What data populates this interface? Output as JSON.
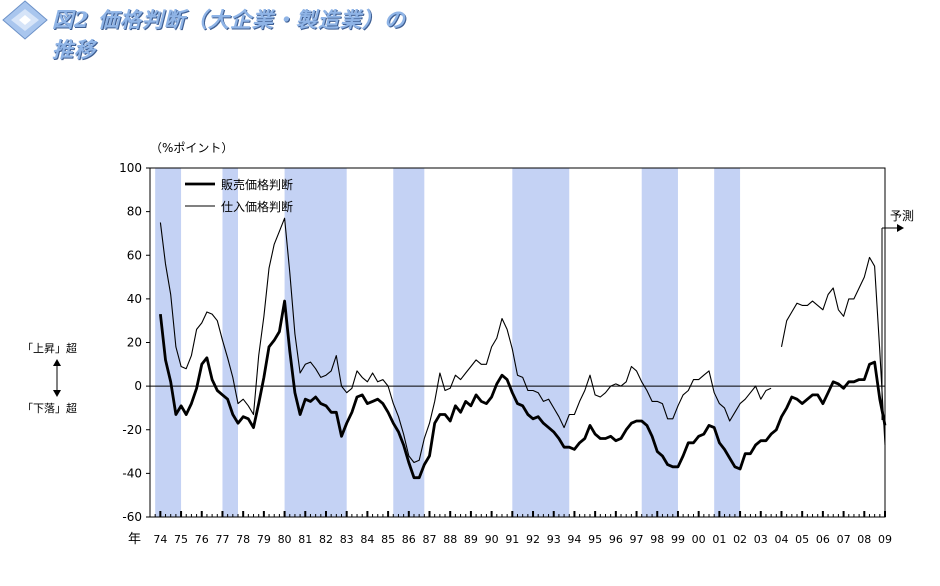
{
  "title": "図2 価格判断（大企業・製造業）の推移",
  "chart_data": {
    "type": "line",
    "unit_label": "（%ポイント）",
    "year_label": "年",
    "y_range": [
      -60,
      100
    ],
    "y_ticks": [
      "100",
      "80",
      "60",
      "40",
      "20",
      "0",
      "-20",
      "-40",
      "-60"
    ],
    "x_range": [
      1973.5,
      2009.0
    ],
    "x_ticks": [
      "74",
      "75",
      "76",
      "77",
      "78",
      "79",
      "80",
      "81",
      "82",
      "83",
      "84",
      "85",
      "86",
      "87",
      "88",
      "89",
      "90",
      "91",
      "92",
      "93",
      "94",
      "95",
      "96",
      "97",
      "98",
      "99",
      "00",
      "01",
      "02",
      "03",
      "04",
      "05",
      "06",
      "07",
      "08",
      "09"
    ],
    "recessions": [
      [
        1973.75,
        1975.0
      ],
      [
        1977.0,
        1977.75
      ],
      [
        1980.0,
        1983.0
      ],
      [
        1985.25,
        1986.75
      ],
      [
        1991.0,
        1993.75
      ],
      [
        1997.25,
        1999.0
      ],
      [
        2000.75,
        2002.0
      ]
    ],
    "series": [
      {
        "name": "販売価格判断",
        "values": [
          [
            1974.0,
            33
          ],
          [
            1974.25,
            12
          ],
          [
            1974.5,
            2
          ],
          [
            1974.75,
            -13
          ],
          [
            1975.0,
            -9
          ],
          [
            1975.25,
            -13
          ],
          [
            1975.5,
            -8
          ],
          [
            1975.75,
            -1
          ],
          [
            1976.0,
            10
          ],
          [
            1976.25,
            13
          ],
          [
            1976.5,
            3
          ],
          [
            1976.75,
            -2
          ],
          [
            1977.0,
            -4
          ],
          [
            1977.25,
            -6
          ],
          [
            1977.5,
            -13
          ],
          [
            1977.75,
            -17
          ],
          [
            1978.0,
            -14
          ],
          [
            1978.25,
            -15
          ],
          [
            1978.5,
            -19
          ],
          [
            1978.75,
            -8
          ],
          [
            1979.0,
            4
          ],
          [
            1979.25,
            18
          ],
          [
            1979.5,
            21
          ],
          [
            1979.75,
            25
          ],
          [
            1980.0,
            39
          ],
          [
            1980.25,
            16
          ],
          [
            1980.5,
            -3
          ],
          [
            1980.75,
            -13
          ],
          [
            1981.0,
            -6
          ],
          [
            1981.25,
            -7
          ],
          [
            1981.5,
            -5
          ],
          [
            1981.75,
            -8
          ],
          [
            1982.0,
            -9
          ],
          [
            1982.25,
            -12
          ],
          [
            1982.5,
            -12
          ],
          [
            1982.75,
            -23
          ],
          [
            1983.0,
            -17
          ],
          [
            1983.25,
            -12
          ],
          [
            1983.5,
            -5
          ],
          [
            1983.75,
            -4
          ],
          [
            1984.0,
            -8
          ],
          [
            1984.25,
            -7
          ],
          [
            1984.5,
            -6
          ],
          [
            1984.75,
            -8
          ],
          [
            1985.0,
            -12
          ],
          [
            1985.25,
            -17
          ],
          [
            1985.5,
            -21
          ],
          [
            1985.75,
            -27
          ],
          [
            1986.0,
            -35
          ],
          [
            1986.25,
            -42
          ],
          [
            1986.5,
            -42
          ],
          [
            1986.75,
            -36
          ],
          [
            1987.0,
            -32
          ],
          [
            1987.25,
            -17
          ],
          [
            1987.5,
            -13
          ],
          [
            1987.75,
            -13
          ],
          [
            1988.0,
            -16
          ],
          [
            1988.25,
            -9
          ],
          [
            1988.5,
            -12
          ],
          [
            1988.75,
            -7
          ],
          [
            1989.0,
            -9
          ],
          [
            1989.25,
            -4
          ],
          [
            1989.5,
            -7
          ],
          [
            1989.75,
            -8
          ],
          [
            1990.0,
            -5
          ],
          [
            1990.25,
            1
          ],
          [
            1990.5,
            5
          ],
          [
            1990.75,
            3
          ],
          [
            1991.0,
            -3
          ],
          [
            1991.25,
            -8
          ],
          [
            1991.5,
            -9
          ],
          [
            1991.75,
            -13
          ],
          [
            1992.0,
            -15
          ],
          [
            1992.25,
            -14
          ],
          [
            1992.5,
            -17
          ],
          [
            1992.75,
            -19
          ],
          [
            1993.0,
            -21
          ],
          [
            1993.25,
            -24
          ],
          [
            1993.5,
            -28
          ],
          [
            1993.75,
            -28
          ],
          [
            1994.0,
            -29
          ],
          [
            1994.25,
            -26
          ],
          [
            1994.5,
            -24
          ],
          [
            1994.75,
            -18
          ],
          [
            1995.0,
            -22
          ],
          [
            1995.25,
            -24
          ],
          [
            1995.5,
            -24
          ],
          [
            1995.75,
            -23
          ],
          [
            1996.0,
            -25
          ],
          [
            1996.25,
            -24
          ],
          [
            1996.5,
            -20
          ],
          [
            1996.75,
            -17
          ],
          [
            1997.0,
            -16
          ],
          [
            1997.25,
            -16
          ],
          [
            1997.5,
            -18
          ],
          [
            1997.75,
            -23
          ],
          [
            1998.0,
            -30
          ],
          [
            1998.25,
            -32
          ],
          [
            1998.5,
            -36
          ],
          [
            1998.75,
            -37
          ],
          [
            1999.0,
            -37
          ],
          [
            1999.25,
            -32
          ],
          [
            1999.5,
            -26
          ],
          [
            1999.75,
            -26
          ],
          [
            2000.0,
            -23
          ],
          [
            2000.25,
            -22
          ],
          [
            2000.5,
            -18
          ],
          [
            2000.75,
            -19
          ],
          [
            2001.0,
            -26
          ],
          [
            2001.25,
            -29
          ],
          [
            2001.5,
            -33
          ],
          [
            2001.75,
            -37
          ],
          [
            2002.0,
            -38
          ],
          [
            2002.25,
            -31
          ],
          [
            2002.5,
            -31
          ],
          [
            2002.75,
            -27
          ],
          [
            2003.0,
            -25
          ],
          [
            2003.25,
            -25
          ],
          [
            2003.5,
            -22
          ],
          [
            2003.75,
            -20
          ],
          [
            2004.0,
            -14
          ],
          [
            2004.25,
            -10
          ],
          [
            2004.5,
            -5
          ],
          [
            2004.75,
            -6
          ],
          [
            2005.0,
            -8
          ],
          [
            2005.25,
            -6
          ],
          [
            2005.5,
            -4
          ],
          [
            2005.75,
            -4
          ],
          [
            2006.0,
            -8
          ],
          [
            2006.25,
            -3
          ],
          [
            2006.5,
            2
          ],
          [
            2006.75,
            1
          ],
          [
            2007.0,
            -1
          ],
          [
            2007.25,
            2
          ],
          [
            2007.5,
            2
          ],
          [
            2007.75,
            3
          ],
          [
            2008.0,
            3
          ],
          [
            2008.25,
            10
          ],
          [
            2008.5,
            11
          ],
          [
            2008.75,
            -6
          ],
          [
            2009.0,
            -18
          ]
        ]
      },
      {
        "name": "仕入価格判断",
        "values": [
          [
            1974.0,
            75
          ],
          [
            1974.25,
            56
          ],
          [
            1974.5,
            42
          ],
          [
            1974.75,
            18
          ],
          [
            1975.0,
            9
          ],
          [
            1975.25,
            8
          ],
          [
            1975.5,
            14
          ],
          [
            1975.75,
            26
          ],
          [
            1976.0,
            29
          ],
          [
            1976.25,
            34
          ],
          [
            1976.5,
            33
          ],
          [
            1976.75,
            30
          ],
          [
            1977.0,
            21
          ],
          [
            1977.25,
            13
          ],
          [
            1977.5,
            4
          ],
          [
            1977.75,
            -8
          ],
          [
            1978.0,
            -6
          ],
          [
            1978.25,
            -9
          ],
          [
            1978.5,
            -13
          ],
          [
            1978.75,
            14
          ],
          [
            1979.0,
            32
          ],
          [
            1979.25,
            54
          ],
          [
            1979.5,
            65
          ],
          [
            1979.75,
            71
          ],
          [
            1980.0,
            77
          ],
          [
            1980.25,
            52
          ],
          [
            1980.5,
            24
          ],
          [
            1980.75,
            6
          ],
          [
            1981.0,
            10
          ],
          [
            1981.25,
            11
          ],
          [
            1981.5,
            8
          ],
          [
            1981.75,
            4
          ],
          [
            1982.0,
            5
          ],
          [
            1982.25,
            7
          ],
          [
            1982.5,
            14
          ],
          [
            1982.75,
            0
          ],
          [
            1983.0,
            -3
          ],
          [
            1983.25,
            -1
          ],
          [
            1983.5,
            7
          ],
          [
            1983.75,
            4
          ],
          [
            1984.0,
            2
          ],
          [
            1984.25,
            6
          ],
          [
            1984.5,
            2
          ],
          [
            1984.75,
            3
          ],
          [
            1985.0,
            0
          ],
          [
            1985.25,
            -8
          ],
          [
            1985.5,
            -14
          ],
          [
            1985.75,
            -22
          ],
          [
            1986.0,
            -32
          ],
          [
            1986.25,
            -35
          ],
          [
            1986.5,
            -34
          ],
          [
            1986.75,
            -24
          ],
          [
            1987.0,
            -17
          ],
          [
            1987.25,
            -7
          ],
          [
            1987.5,
            6
          ],
          [
            1987.75,
            -2
          ],
          [
            1988.0,
            -1
          ],
          [
            1988.25,
            5
          ],
          [
            1988.5,
            3
          ],
          [
            1988.75,
            6
          ],
          [
            1989.0,
            9
          ],
          [
            1989.25,
            12
          ],
          [
            1989.5,
            10
          ],
          [
            1989.75,
            10
          ],
          [
            1990.0,
            18
          ],
          [
            1990.25,
            22
          ],
          [
            1990.5,
            31
          ],
          [
            1990.75,
            26
          ],
          [
            1991.0,
            17
          ],
          [
            1991.25,
            5
          ],
          [
            1991.5,
            4
          ],
          [
            1991.75,
            -2
          ],
          [
            1992.0,
            -2
          ],
          [
            1992.25,
            -3
          ],
          [
            1992.5,
            -7
          ],
          [
            1992.75,
            -6
          ],
          [
            1993.0,
            -10
          ],
          [
            1993.25,
            -14
          ],
          [
            1993.5,
            -19
          ],
          [
            1993.75,
            -13
          ],
          [
            1994.0,
            -13
          ],
          [
            1994.25,
            -7
          ],
          [
            1994.5,
            -2
          ],
          [
            1994.75,
            5
          ],
          [
            1995.0,
            -4
          ],
          [
            1995.25,
            -5
          ],
          [
            1995.5,
            -3
          ],
          [
            1995.75,
            0
          ],
          [
            1996.0,
            1
          ],
          [
            1996.25,
            0
          ],
          [
            1996.5,
            2
          ],
          [
            1996.75,
            9
          ],
          [
            1997.0,
            7
          ],
          [
            1997.25,
            2
          ],
          [
            1997.5,
            -2
          ],
          [
            1997.75,
            -7
          ],
          [
            1998.0,
            -7
          ],
          [
            1998.25,
            -8
          ],
          [
            1998.5,
            -15
          ],
          [
            1998.75,
            -15
          ],
          [
            1999.0,
            -9
          ],
          [
            1999.25,
            -4
          ],
          [
            1999.5,
            -2
          ],
          [
            1999.75,
            3
          ],
          [
            2000.0,
            3
          ],
          [
            2000.25,
            5
          ],
          [
            2000.5,
            7
          ],
          [
            2000.75,
            -3
          ],
          [
            2001.0,
            -8
          ],
          [
            2001.25,
            -10
          ],
          [
            2001.5,
            -16
          ],
          [
            2001.75,
            -12
          ],
          [
            2002.0,
            -8
          ],
          [
            2002.25,
            -6
          ],
          [
            2002.5,
            -3
          ],
          [
            2002.75,
            0
          ],
          [
            2003.0,
            -6
          ],
          [
            2003.25,
            -2
          ],
          [
            2003.5,
            -1
          ],
          [
            2003.75,
            null
          ],
          [
            2004.0,
            18
          ],
          [
            2004.25,
            30
          ],
          [
            2004.5,
            34
          ],
          [
            2004.75,
            38
          ],
          [
            2005.0,
            37
          ],
          [
            2005.25,
            37
          ],
          [
            2005.5,
            39
          ],
          [
            2005.75,
            37
          ],
          [
            2006.0,
            35
          ],
          [
            2006.25,
            42
          ],
          [
            2006.5,
            45
          ],
          [
            2006.75,
            35
          ],
          [
            2007.0,
            32
          ],
          [
            2007.25,
            40
          ],
          [
            2007.5,
            40
          ],
          [
            2007.75,
            45
          ],
          [
            2008.0,
            50
          ],
          [
            2008.25,
            59
          ],
          [
            2008.5,
            55
          ],
          [
            2008.75,
            16
          ],
          [
            2009.0,
            -27
          ]
        ]
      }
    ],
    "annotations": {
      "up_label": "「上昇」超",
      "down_label": "「下落」超",
      "forecast_label": "予測"
    },
    "legend_position": "top-left",
    "grid": false
  },
  "colors": {
    "recession_band": "#c4d2f4",
    "line": "#000000",
    "title": "#8fb4e6"
  }
}
